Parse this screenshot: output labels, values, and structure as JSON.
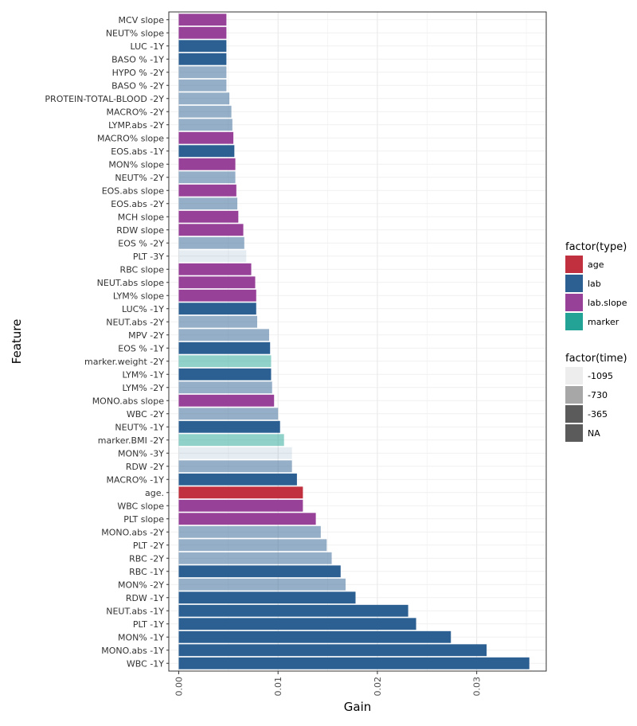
{
  "chart_data": {
    "type": "bar",
    "orientation": "horizontal",
    "xlabel": "Gain",
    "ylabel": "Feature",
    "xlim": [
      -0.001,
      0.037
    ],
    "xticks": [
      0.0,
      0.01,
      0.02,
      0.03
    ],
    "xtick_labels": [
      "0.00",
      "0.01",
      "0.02",
      "0.03"
    ],
    "grid": true,
    "legend_placement": "right",
    "type_colors": {
      "age": "#c0303e",
      "lab": "#2d6092",
      "lab.slope": "#974199",
      "marker": "#22a396"
    },
    "time_alpha": {
      "-1095": 0.12,
      "-730": 0.5,
      "-365": 1.0,
      "NA": 1.0
    },
    "legend_type": {
      "title": "factor(type)",
      "items": [
        "age",
        "lab",
        "lab.slope",
        "marker"
      ]
    },
    "legend_time": {
      "title": "factor(time)",
      "items": [
        "-1095",
        "-730",
        "-365",
        "NA"
      ],
      "colors": [
        "#ededed",
        "#a7a7a7",
        "#5b5b5b",
        "#5b5b5b"
      ]
    },
    "bars": [
      {
        "label": "MCV slope",
        "value": 0.0048,
        "type": "lab.slope",
        "time": "NA"
      },
      {
        "label": "NEUT% slope",
        "value": 0.0048,
        "type": "lab.slope",
        "time": "NA"
      },
      {
        "label": "LUC -1Y",
        "value": 0.0048,
        "type": "lab",
        "time": "-365"
      },
      {
        "label": "BASO % -1Y",
        "value": 0.0048,
        "type": "lab",
        "time": "-365"
      },
      {
        "label": "HYPO % -2Y",
        "value": 0.0048,
        "type": "lab",
        "time": "-730"
      },
      {
        "label": "BASO % -2Y",
        "value": 0.0048,
        "type": "lab",
        "time": "-730"
      },
      {
        "label": "PROTEIN-TOTAL-BLOOD -2Y",
        "value": 0.0051,
        "type": "lab",
        "time": "-730"
      },
      {
        "label": "MACRO% -2Y",
        "value": 0.0053,
        "type": "lab",
        "time": "-730"
      },
      {
        "label": "LYMP.abs -2Y",
        "value": 0.0054,
        "type": "lab",
        "time": "-730"
      },
      {
        "label": "MACRO% slope",
        "value": 0.0055,
        "type": "lab.slope",
        "time": "NA"
      },
      {
        "label": "EOS.abs -1Y",
        "value": 0.0056,
        "type": "lab",
        "time": "-365"
      },
      {
        "label": "MON% slope",
        "value": 0.0057,
        "type": "lab.slope",
        "time": "NA"
      },
      {
        "label": "NEUT% -2Y",
        "value": 0.0057,
        "type": "lab",
        "time": "-730"
      },
      {
        "label": "EOS.abs slope",
        "value": 0.0058,
        "type": "lab.slope",
        "time": "NA"
      },
      {
        "label": "EOS.abs -2Y",
        "value": 0.0059,
        "type": "lab",
        "time": "-730"
      },
      {
        "label": "MCH slope",
        "value": 0.006,
        "type": "lab.slope",
        "time": "NA"
      },
      {
        "label": "RDW slope",
        "value": 0.0065,
        "type": "lab.slope",
        "time": "NA"
      },
      {
        "label": "EOS % -2Y",
        "value": 0.0066,
        "type": "lab",
        "time": "-730"
      },
      {
        "label": "PLT -3Y",
        "value": 0.0068,
        "type": "lab",
        "time": "-1095"
      },
      {
        "label": "RBC slope",
        "value": 0.0073,
        "type": "lab.slope",
        "time": "NA"
      },
      {
        "label": "NEUT.abs slope",
        "value": 0.0077,
        "type": "lab.slope",
        "time": "NA"
      },
      {
        "label": "LYM% slope",
        "value": 0.0078,
        "type": "lab.slope",
        "time": "NA"
      },
      {
        "label": "LUC% -1Y",
        "value": 0.0078,
        "type": "lab",
        "time": "-365"
      },
      {
        "label": "NEUT.abs -2Y",
        "value": 0.0079,
        "type": "lab",
        "time": "-730"
      },
      {
        "label": "MPV -2Y",
        "value": 0.0091,
        "type": "lab",
        "time": "-730"
      },
      {
        "label": "EOS % -1Y",
        "value": 0.0092,
        "type": "lab",
        "time": "-365"
      },
      {
        "label": "marker.weight -2Y",
        "value": 0.0093,
        "type": "marker",
        "time": "-730"
      },
      {
        "label": "LYM% -1Y",
        "value": 0.0093,
        "type": "lab",
        "time": "-365"
      },
      {
        "label": "LYM% -2Y",
        "value": 0.0094,
        "type": "lab",
        "time": "-730"
      },
      {
        "label": "MONO.abs slope",
        "value": 0.0096,
        "type": "lab.slope",
        "time": "NA"
      },
      {
        "label": "WBC -2Y",
        "value": 0.01,
        "type": "lab",
        "time": "-730"
      },
      {
        "label": "NEUT% -1Y",
        "value": 0.0102,
        "type": "lab",
        "time": "-365"
      },
      {
        "label": "marker.BMI -2Y",
        "value": 0.0106,
        "type": "marker",
        "time": "-730"
      },
      {
        "label": "MON% -3Y",
        "value": 0.0114,
        "type": "lab",
        "time": "-1095"
      },
      {
        "label": "RDW -2Y",
        "value": 0.0114,
        "type": "lab",
        "time": "-730"
      },
      {
        "label": "MACRO% -1Y",
        "value": 0.0119,
        "type": "lab",
        "time": "-365"
      },
      {
        "label": "age.",
        "value": 0.0125,
        "type": "age",
        "time": "NA"
      },
      {
        "label": "WBC slope",
        "value": 0.0125,
        "type": "lab.slope",
        "time": "NA"
      },
      {
        "label": "PLT slope",
        "value": 0.0138,
        "type": "lab.slope",
        "time": "NA"
      },
      {
        "label": "MONO.abs -2Y",
        "value": 0.0143,
        "type": "lab",
        "time": "-730"
      },
      {
        "label": "PLT -2Y",
        "value": 0.0149,
        "type": "lab",
        "time": "-730"
      },
      {
        "label": "RBC -2Y",
        "value": 0.0154,
        "type": "lab",
        "time": "-730"
      },
      {
        "label": "RBC -1Y",
        "value": 0.0163,
        "type": "lab",
        "time": "-365"
      },
      {
        "label": "MON% -2Y",
        "value": 0.0168,
        "type": "lab",
        "time": "-730"
      },
      {
        "label": "RDW -1Y",
        "value": 0.0178,
        "type": "lab",
        "time": "-365"
      },
      {
        "label": "NEUT.abs -1Y",
        "value": 0.0231,
        "type": "lab",
        "time": "-365"
      },
      {
        "label": "PLT -1Y",
        "value": 0.0239,
        "type": "lab",
        "time": "-365"
      },
      {
        "label": "MON% -1Y",
        "value": 0.0274,
        "type": "lab",
        "time": "-365"
      },
      {
        "label": "MONO.abs -1Y",
        "value": 0.031,
        "type": "lab",
        "time": "-365"
      },
      {
        "label": "WBC -1Y",
        "value": 0.0353,
        "type": "lab",
        "time": "-365"
      }
    ]
  }
}
